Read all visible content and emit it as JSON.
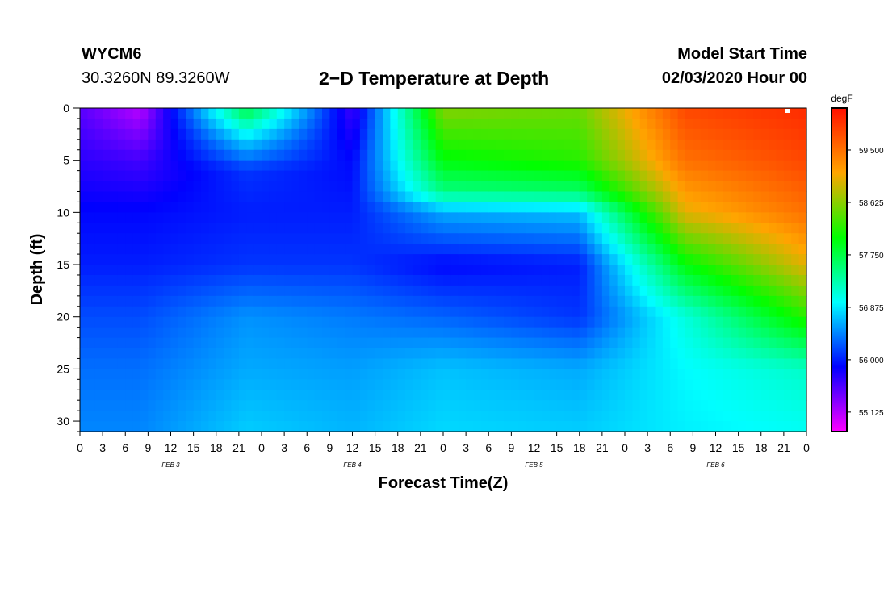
{
  "header": {
    "station_id": "WYCM6",
    "coords": "30.3260N 89.3260W",
    "title": "2−D Temperature at Depth",
    "model_start_label": "Model Start Time",
    "model_start_value": "02/03/2020 Hour 00"
  },
  "chart_data": {
    "type": "heatmap",
    "title": "2−D Temperature at Depth",
    "xlabel": "Forecast Time(Z)",
    "ylabel": "Depth (ft)",
    "x_range_hours": [
      0,
      96
    ],
    "ylim": [
      0,
      31
    ],
    "y_inverted": true,
    "x_tick_labels": [
      "0",
      "3",
      "6",
      "9",
      "12",
      "15",
      "18",
      "21",
      "0",
      "3",
      "6",
      "9",
      "12",
      "15",
      "18",
      "21",
      "0",
      "3",
      "6",
      "9",
      "12",
      "15",
      "18",
      "21",
      "0",
      "3",
      "6",
      "9",
      "12",
      "15",
      "18",
      "21",
      "0"
    ],
    "y_ticks": [
      0,
      5,
      10,
      15,
      20,
      25,
      30
    ],
    "date_labels": [
      {
        "text": "FEB 3",
        "hour": 12
      },
      {
        "text": "FEB 4",
        "hour": 36
      },
      {
        "text": "FEB 5",
        "hour": 60
      },
      {
        "text": "FEB 6",
        "hour": 84
      }
    ],
    "colorbar": {
      "unit": "degF",
      "min": 54.8,
      "max": 60.2,
      "tick_values": [
        59.5,
        58.625,
        57.75,
        56.875,
        56.0,
        55.125
      ],
      "tick_labels": [
        "59.500",
        "58.625",
        "57.750",
        "56.875",
        "56.000",
        "55.125"
      ]
    },
    "approx_profiles": [
      {
        "hour": 0,
        "depths": [
          0,
          5,
          10,
          15,
          20,
          25,
          31
        ],
        "temps": [
          55.5,
          55.7,
          55.9,
          56.0,
          56.2,
          56.35,
          56.45
        ]
      },
      {
        "hour": 8,
        "depths": [
          0,
          5,
          10,
          15,
          20,
          25,
          31
        ],
        "temps": [
          55.1,
          55.6,
          55.9,
          56.0,
          56.2,
          56.35,
          56.45
        ]
      },
      {
        "hour": 22,
        "depths": [
          0,
          3,
          6,
          10,
          15,
          20,
          25,
          31
        ],
        "temps": [
          57.8,
          56.8,
          56.1,
          56.0,
          56.1,
          56.5,
          56.6,
          56.75
        ]
      },
      {
        "hour": 36,
        "depths": [
          0,
          5,
          10,
          15,
          20,
          25,
          31
        ],
        "temps": [
          55.6,
          55.9,
          56.0,
          56.1,
          56.4,
          56.55,
          56.65
        ]
      },
      {
        "hour": 48,
        "depths": [
          0,
          5,
          8,
          10,
          15,
          20,
          25,
          31
        ],
        "temps": [
          58.6,
          58.0,
          57.5,
          56.6,
          55.9,
          56.3,
          56.7,
          56.8
        ]
      },
      {
        "hour": 66,
        "depths": [
          0,
          5,
          8,
          10,
          15,
          20,
          25,
          31
        ],
        "temps": [
          58.5,
          58.2,
          57.6,
          56.7,
          56.0,
          56.1,
          56.6,
          56.75
        ]
      },
      {
        "hour": 80,
        "depths": [
          0,
          5,
          10,
          15,
          20,
          25,
          31
        ],
        "temps": [
          59.8,
          59.5,
          59.0,
          58.0,
          57.1,
          56.95,
          56.9
        ]
      },
      {
        "hour": 96,
        "depths": [
          0,
          5,
          10,
          15,
          20,
          25,
          31
        ],
        "temps": [
          60.0,
          59.8,
          59.5,
          59.0,
          58.2,
          57.2,
          57.0
        ]
      }
    ],
    "annotations": []
  }
}
